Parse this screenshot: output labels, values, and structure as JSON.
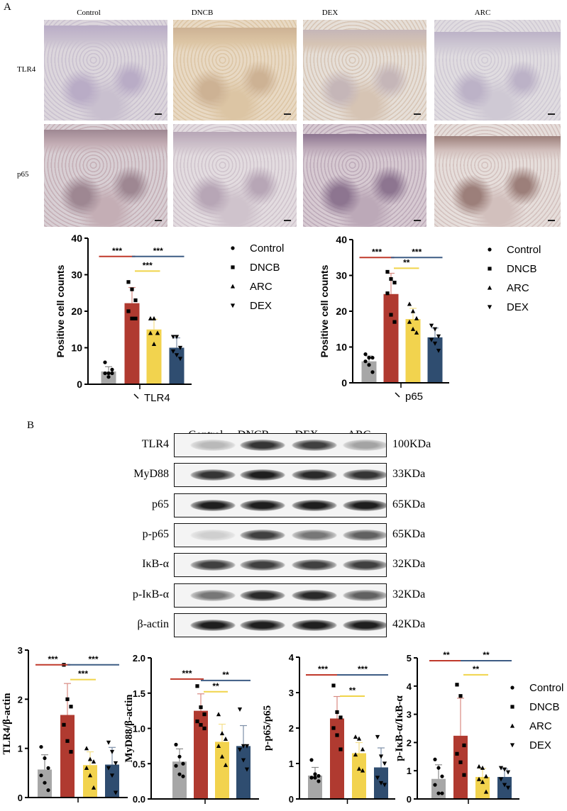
{
  "panel_a": {
    "letter": "A",
    "columns": [
      "Control",
      "DNCB",
      "DEX",
      "ARC"
    ],
    "rows": [
      "TLR4",
      "p65"
    ]
  },
  "panel_b": {
    "letter": "B",
    "lanes": [
      "Control",
      "DNCB",
      "DEX",
      "ARC"
    ],
    "blots": [
      {
        "protein": "TLR4",
        "size": "100KDa",
        "band_darkness": [
          0.25,
          0.85,
          0.8,
          0.35
        ]
      },
      {
        "protein": "MyD88",
        "size": "33KDa",
        "band_darkness": [
          0.85,
          0.95,
          0.9,
          0.85
        ]
      },
      {
        "protein": "p65",
        "size": "65KDa",
        "band_darkness": [
          0.95,
          0.95,
          0.95,
          0.95
        ]
      },
      {
        "protein": "p-p65",
        "size": "65KDa",
        "band_darkness": [
          0.15,
          0.8,
          0.55,
          0.65
        ]
      },
      {
        "protein": "IκB-α",
        "size": "32KDa",
        "band_darkness": [
          0.8,
          0.8,
          0.8,
          0.8
        ]
      },
      {
        "protein": "p-IκB-α",
        "size": "32KDa",
        "band_darkness": [
          0.55,
          0.9,
          0.9,
          0.65
        ]
      },
      {
        "protein": "β-actin",
        "size": "42KDa",
        "band_darkness": [
          0.95,
          0.95,
          0.95,
          0.95
        ]
      }
    ]
  },
  "colors": {
    "Control": "#a7a7a7",
    "DNCB": "#b03a30",
    "ARC": "#f2d34e",
    "DEX": "#2f4d70",
    "sig_red": "#c0392b",
    "sig_yellow": "#f0d44a",
    "sig_blue": "#3d5c84"
  },
  "legend": [
    {
      "label": "Control",
      "marker": "circle"
    },
    {
      "label": "DNCB",
      "marker": "square"
    },
    {
      "label": "ARC",
      "marker": "triangle-up"
    },
    {
      "label": "DEX",
      "marker": "triangle-down"
    }
  ],
  "chart_data": [
    {
      "type": "bar",
      "ylabel": "Positive cell counts",
      "xlabel": "TLR4",
      "ylim": [
        0,
        40
      ],
      "yticks": [
        0,
        10,
        20,
        30,
        40
      ],
      "categories": [
        "Control",
        "DNCB",
        "ARC",
        "DEX"
      ],
      "means": [
        3.5,
        22.2,
        15.0,
        10.0
      ],
      "sd": [
        1.3,
        4.3,
        2.8,
        2.7
      ],
      "points": [
        [
          6,
          3,
          3,
          3,
          2,
          4
        ],
        [
          28,
          26,
          23,
          20,
          18,
          18
        ],
        [
          18,
          18,
          14,
          14,
          11,
          14
        ],
        [
          13,
          13,
          10,
          9,
          8,
          7
        ]
      ],
      "significance": [
        {
          "from": "Control",
          "to": "DNCB",
          "y": 35,
          "label": "***",
          "color": "red"
        },
        {
          "from": "DNCB",
          "to": "DEX",
          "y": 35,
          "label": "***",
          "color": "blue"
        },
        {
          "from": "DNCB",
          "to": "ARC",
          "y": 31,
          "label": "***",
          "color": "yellow"
        }
      ]
    },
    {
      "type": "bar",
      "ylabel": "Positive cell counts",
      "xlabel": "p65",
      "ylim": [
        0,
        40
      ],
      "yticks": [
        0,
        10,
        20,
        30,
        40
      ],
      "categories": [
        "Control",
        "DNCB",
        "ARC",
        "DEX"
      ],
      "means": [
        6.0,
        24.8,
        17.8,
        12.7
      ],
      "sd": [
        1.5,
        5.8,
        3.0,
        2.6
      ],
      "points": [
        [
          8,
          7,
          7,
          6,
          5,
          3
        ],
        [
          31,
          29,
          28,
          25,
          19,
          17
        ],
        [
          22,
          20,
          18,
          17,
          15,
          14
        ],
        [
          16,
          15,
          13,
          12,
          11,
          9
        ]
      ],
      "significance": [
        {
          "from": "Control",
          "to": "DNCB",
          "y": 35,
          "label": "***",
          "color": "red"
        },
        {
          "from": "DNCB",
          "to": "DEX",
          "y": 35,
          "label": "***",
          "color": "blue"
        },
        {
          "from": "DNCB",
          "to": "ARC",
          "y": 32,
          "label": "**",
          "color": "yellow"
        }
      ]
    },
    {
      "type": "bar",
      "ylabel": "TLR4/β-actin",
      "xlabel": "",
      "ylim": [
        0,
        3
      ],
      "yticks": [
        0,
        1,
        2,
        3
      ],
      "categories": [
        "Control",
        "DNCB",
        "ARC",
        "DEX"
      ],
      "means": [
        0.57,
        1.68,
        0.66,
        0.67
      ],
      "sd": [
        0.3,
        0.64,
        0.27,
        0.35
      ],
      "points": [
        [
          1.03,
          0.8,
          0.6,
          0.45,
          0.3,
          0.15
        ],
        [
          2.7,
          2.0,
          1.85,
          1.48,
          1.15,
          0.93
        ],
        [
          1.0,
          0.78,
          0.73,
          0.6,
          0.45,
          0.2
        ],
        [
          1.12,
          0.93,
          0.7,
          0.6,
          0.45,
          0.1
        ]
      ],
      "significance": [
        {
          "from": "Control",
          "to": "DNCB",
          "y": 2.7,
          "label": "***",
          "color": "red"
        },
        {
          "from": "DNCB",
          "to": "DEX",
          "y": 2.7,
          "label": "***",
          "color": "blue"
        },
        {
          "from": "DNCB",
          "to": "ARC",
          "y": 2.4,
          "label": "***",
          "color": "yellow"
        }
      ]
    },
    {
      "type": "bar",
      "ylabel": "MyD88/β-actin",
      "xlabel": "",
      "ylim": [
        0,
        2
      ],
      "yticks": [
        "0.0",
        "0.5",
        "1.0",
        "1.5",
        "2.0"
      ],
      "categories": [
        "Control",
        "DNCB",
        "ARC",
        "DEX"
      ],
      "means": [
        0.53,
        1.25,
        0.81,
        0.75
      ],
      "sd": [
        0.18,
        0.24,
        0.25,
        0.29
      ],
      "points": [
        [
          0.77,
          0.6,
          0.5,
          0.47,
          0.35,
          0.32
        ],
        [
          1.6,
          1.3,
          1.2,
          1.1,
          1.05,
          1.0
        ],
        [
          1.2,
          0.93,
          0.85,
          0.75,
          0.6,
          0.48
        ],
        [
          1.27,
          0.75,
          0.75,
          0.7,
          0.55,
          0.42
        ]
      ],
      "significance": [
        {
          "from": "Control",
          "to": "DNCB",
          "y": 1.7,
          "label": "***",
          "color": "red"
        },
        {
          "from": "DNCB",
          "to": "DEX",
          "y": 1.68,
          "label": "**",
          "color": "blue"
        },
        {
          "from": "DNCB",
          "to": "ARC",
          "y": 1.52,
          "label": "**",
          "color": "yellow"
        }
      ]
    },
    {
      "type": "bar",
      "ylabel": "p-p65/p65",
      "xlabel": "",
      "ylim": [
        0,
        4
      ],
      "yticks": [
        0,
        1,
        2,
        3,
        4
      ],
      "categories": [
        "Control",
        "DNCB",
        "ARC",
        "DEX"
      ],
      "means": [
        0.66,
        2.27,
        1.29,
        0.89
      ],
      "sd": [
        0.23,
        0.62,
        0.3,
        0.55
      ],
      "points": [
        [
          1.1,
          0.7,
          0.65,
          0.6,
          0.6,
          0.5
        ],
        [
          3.2,
          2.45,
          2.3,
          2.0,
          1.8,
          1.4
        ],
        [
          1.75,
          1.7,
          1.4,
          1.25,
          0.85,
          0.8
        ],
        [
          1.75,
          1.2,
          1.0,
          0.6,
          0.45,
          0.4
        ]
      ],
      "significance": [
        {
          "from": "Control",
          "to": "DNCB",
          "y": 3.5,
          "label": "***",
          "color": "red"
        },
        {
          "from": "DNCB",
          "to": "DEX",
          "y": 3.5,
          "label": "***",
          "color": "blue"
        },
        {
          "from": "DNCB",
          "to": "ARC",
          "y": 2.9,
          "label": "**",
          "color": "yellow"
        }
      ]
    },
    {
      "type": "bar",
      "ylabel": "p-IκB-α/IκB-α",
      "xlabel": "",
      "ylim": [
        0,
        5
      ],
      "yticks": [
        0,
        1,
        2,
        3,
        4,
        5
      ],
      "categories": [
        "Control",
        "DNCB",
        "ARC",
        "DEX"
      ],
      "means": [
        0.71,
        2.24,
        0.78,
        0.78
      ],
      "sd": [
        0.5,
        1.33,
        0.3,
        0.28
      ],
      "points": [
        [
          1.4,
          1.1,
          0.8,
          0.5,
          0.2,
          0.2
        ],
        [
          4.05,
          3.65,
          1.9,
          1.6,
          1.3,
          0.85
        ],
        [
          1.15,
          1.1,
          0.8,
          0.7,
          0.6,
          0.25
        ],
        [
          1.1,
          1.05,
          0.95,
          0.7,
          0.5,
          0.4
        ]
      ],
      "significance": [
        {
          "from": "Control",
          "to": "DNCB",
          "y": 4.9,
          "label": "**",
          "color": "red"
        },
        {
          "from": "DNCB",
          "to": "DEX",
          "y": 4.9,
          "label": "**",
          "color": "blue"
        },
        {
          "from": "DNCB",
          "to": "ARC",
          "y": 4.4,
          "label": "**",
          "color": "yellow"
        }
      ]
    }
  ]
}
